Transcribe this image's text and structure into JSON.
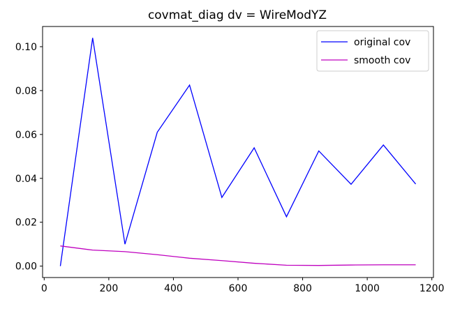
{
  "chart_data": {
    "type": "line",
    "title": "covmat_diag dv = WireModYZ",
    "xlabel": "",
    "ylabel": "",
    "xlim": [
      -5,
      1205
    ],
    "ylim": [
      -0.0052,
      0.1092
    ],
    "xticks": [
      0,
      200,
      400,
      600,
      800,
      1000,
      1200
    ],
    "xtick_labels": [
      "0",
      "200",
      "400",
      "600",
      "800",
      "1000",
      "1200"
    ],
    "yticks": [
      0.0,
      0.02,
      0.04,
      0.06,
      0.08,
      0.1
    ],
    "ytick_labels": [
      "0.00",
      "0.02",
      "0.04",
      "0.06",
      "0.08",
      "0.10"
    ],
    "grid": false,
    "legend_position": "top-right",
    "x": [
      50,
      150,
      250,
      350,
      450,
      550,
      650,
      750,
      850,
      950,
      1050,
      1150
    ],
    "series": [
      {
        "name": "original cov",
        "color": "#0000ff",
        "values": [
          0.0,
          0.104,
          0.01,
          0.061,
          0.0825,
          0.0313,
          0.0539,
          0.0225,
          0.0525,
          0.0373,
          0.0552,
          0.0374
        ]
      },
      {
        "name": "smooth cov",
        "color": "#bf00bf",
        "values": [
          0.0092,
          0.0073,
          0.0066,
          0.0052,
          0.0036,
          0.0025,
          0.0013,
          0.0004,
          0.0003,
          0.0005,
          0.0006,
          0.0006
        ]
      }
    ]
  }
}
